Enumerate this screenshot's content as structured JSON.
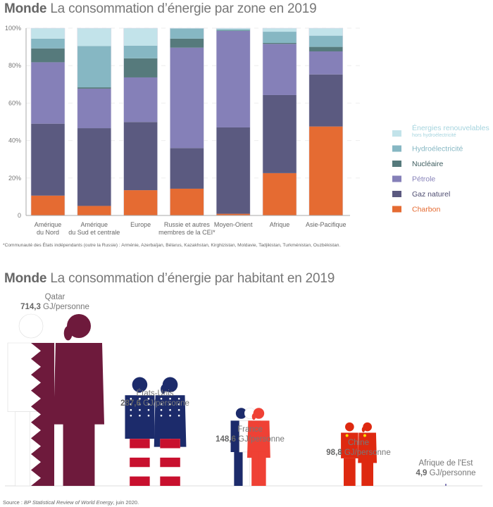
{
  "chart_data": [
    {
      "type": "bar",
      "stacked": true,
      "title_bold": "Monde",
      "title": "La consommation d’énergie par zone en 2019",
      "xlabel": "",
      "ylabel": "",
      "ylim": [
        0,
        100
      ],
      "yticks": [
        "0",
        "20%",
        "40%",
        "60%",
        "80%",
        "100%"
      ],
      "grid": true,
      "legend_position": "right",
      "categories": [
        [
          "Amérique",
          "du Nord"
        ],
        [
          "Amérique",
          "du Sud et centrale"
        ],
        [
          "Europe"
        ],
        [
          "Russie et autres",
          "membres de la CEI*"
        ],
        [
          "Moyen-Orient"
        ],
        [
          "Afrique"
        ],
        [
          "Asie-Pacifique"
        ]
      ],
      "series": [
        {
          "name": "Charbon",
          "color": "#e56b32",
          "values": [
            10.6,
            5.1,
            13.5,
            14.3,
            0.9,
            22.6,
            47.5
          ]
        },
        {
          "name": "Gaz naturel",
          "color": "#5b5a80",
          "values": [
            38.4,
            41.5,
            36.4,
            21.7,
            46.1,
            41.7,
            27.8
          ]
        },
        {
          "name": "Pétrole",
          "color": "#8580b8",
          "values": [
            32.8,
            21.1,
            23.8,
            53.6,
            51.5,
            27.3,
            12.3
          ]
        },
        {
          "name": "Nucléaire",
          "color": "#567a7c",
          "values": [
            7.4,
            0.7,
            10.2,
            4.8,
            0.2,
            0.5,
            2.4
          ]
        },
        {
          "name": "Hydroélectricité",
          "color": "#86b7c3",
          "values": [
            5.2,
            22.1,
            6.7,
            5.4,
            0.8,
            6.0,
            6.0
          ]
        },
        {
          "name": "Énergies renouvelables",
          "subname": "hors hydroélectricité",
          "color": "#c2e3ea",
          "values": [
            5.6,
            9.5,
            9.4,
            0.2,
            0.5,
            1.9,
            4.0
          ]
        }
      ],
      "footnote": "*Communauté des États indépendants (outre la Russie) : Arménie, Azerbaïjan, Bélarus, Kazakhstan, Kirghizistan, Moldavie, Tadjikistan, Turkménistan, Ouzbékistan."
    },
    {
      "type": "pictograph",
      "title_bold": "Monde",
      "title": "La consommation d’énergie par habitant en 2019",
      "unit": "GJ/personne",
      "items": [
        {
          "country": "Qatar",
          "value": "714,3",
          "num": 714.3,
          "flag": "qatar"
        },
        {
          "country": "États-Unis",
          "value": "287,6",
          "num": 287.6,
          "flag": "usa"
        },
        {
          "country": "France",
          "value": "148,6",
          "num": 148.6,
          "flag": "france"
        },
        {
          "country": "Chine",
          "value": "98,8",
          "num": 98.8,
          "flag": "china"
        },
        {
          "country": "Afrique de l'Est",
          "value": "4,9",
          "num": 4.9,
          "flag": "east-africa"
        }
      ]
    }
  ],
  "source_prefix": "Source : ",
  "source_title": "BP Statistical Review of World Energy",
  "source_suffix": ", juin 2020."
}
